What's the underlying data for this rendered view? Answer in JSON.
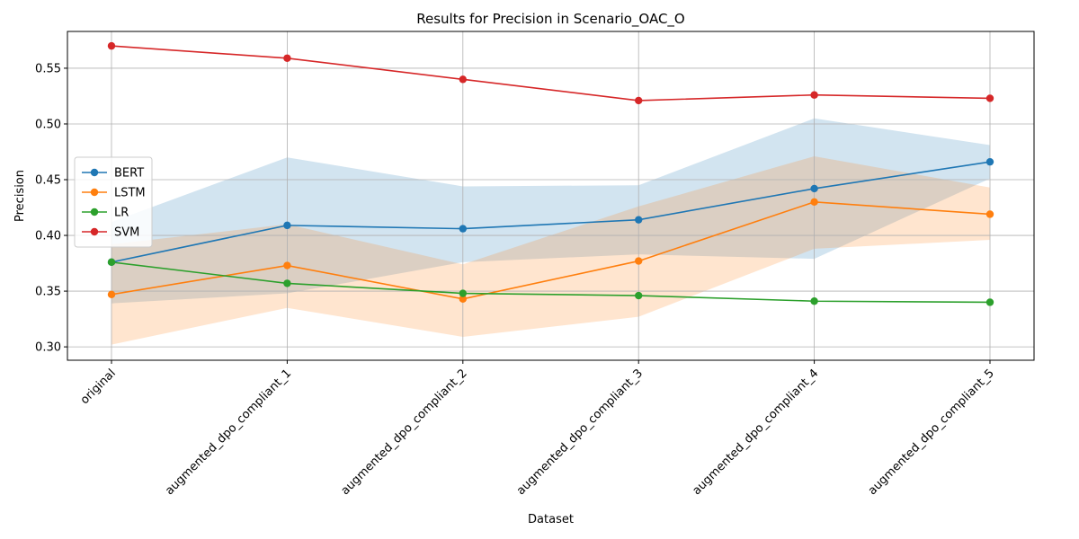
{
  "chart_data": {
    "type": "line",
    "title": "Results for Precision in Scenario_OAC_O",
    "xlabel": "Dataset",
    "ylabel": "Precision",
    "categories": [
      "original",
      "augmented_dpo_compliant_1",
      "augmented_dpo_compliant_2",
      "augmented_dpo_compliant_3",
      "augmented_dpo_compliant_4",
      "augmented_dpo_compliant_5"
    ],
    "ylim": [
      0.288,
      0.583
    ],
    "yticks": [
      0.3,
      0.35,
      0.4,
      0.45,
      0.5,
      0.55
    ],
    "ytick_labels": [
      "0.30",
      "0.35",
      "0.40",
      "0.45",
      "0.50",
      "0.55"
    ],
    "grid": true,
    "legend_position": "center-left",
    "series": [
      {
        "name": "BERT",
        "color": "#1f77b4",
        "values": [
          0.376,
          0.409,
          0.406,
          0.414,
          0.442,
          0.466
        ],
        "band_low": [
          0.339,
          0.348,
          0.376,
          0.383,
          0.379,
          0.451
        ],
        "band_high": [
          0.412,
          0.47,
          0.444,
          0.445,
          0.505,
          0.481
        ]
      },
      {
        "name": "LSTM",
        "color": "#ff7f0e",
        "values": [
          0.347,
          0.373,
          0.343,
          0.377,
          0.43,
          0.419
        ],
        "band_low": [
          0.302,
          0.335,
          0.309,
          0.327,
          0.388,
          0.396
        ],
        "band_high": [
          0.392,
          0.41,
          0.374,
          0.426,
          0.471,
          0.443
        ]
      },
      {
        "name": "LR",
        "color": "#2ca02c",
        "values": [
          0.376,
          0.357,
          0.348,
          0.346,
          0.341,
          0.34
        ]
      },
      {
        "name": "SVM",
        "color": "#d62728",
        "values": [
          0.57,
          0.559,
          0.54,
          0.521,
          0.526,
          0.523
        ]
      }
    ]
  }
}
